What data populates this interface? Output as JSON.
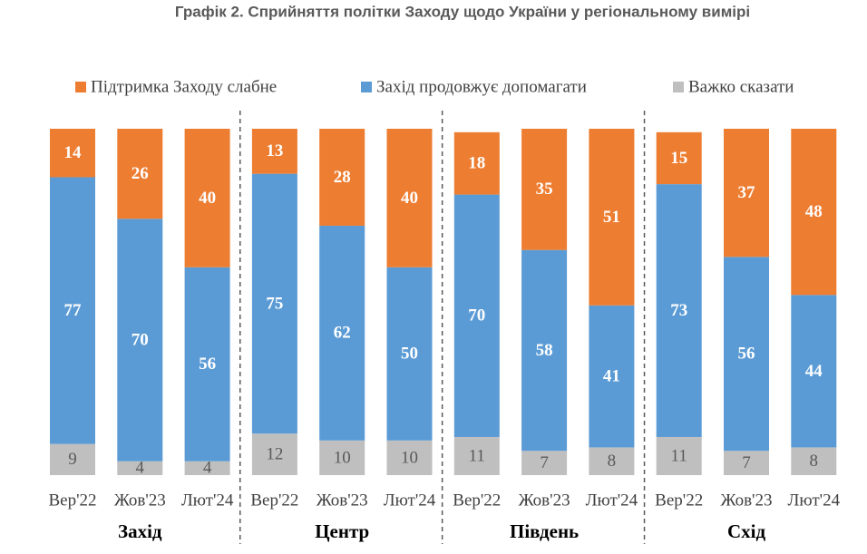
{
  "chart_data": {
    "type": "stacked_bar",
    "title": "Графік 2. Сприйняття політки Заходу щодо України у регіональному вимірі",
    "groups": [
      "Захід",
      "Центр",
      "Південь",
      "Схід"
    ],
    "categories": [
      "Вер'22",
      "Жов'23",
      "Лют'24",
      "Вер'22",
      "Жов'23",
      "Лют'24",
      "Вер'22",
      "Жов'23",
      "Лют'24",
      "Вер'22",
      "Жов'23",
      "Лют'24"
    ],
    "series": [
      {
        "name": "Підтримка Заходу слабне",
        "color": "#ed7d31",
        "values": [
          14,
          26,
          40,
          13,
          28,
          40,
          18,
          35,
          51,
          15,
          37,
          48
        ]
      },
      {
        "name": "Захід продовжує допомагати",
        "color": "#5b9bd5",
        "values": [
          77,
          70,
          56,
          75,
          62,
          50,
          70,
          58,
          41,
          73,
          56,
          44
        ]
      },
      {
        "name": "Важко сказати",
        "color": "#bfbfbf",
        "values": [
          9,
          4,
          4,
          12,
          10,
          10,
          11,
          7,
          8,
          11,
          7,
          8
        ]
      }
    ]
  }
}
